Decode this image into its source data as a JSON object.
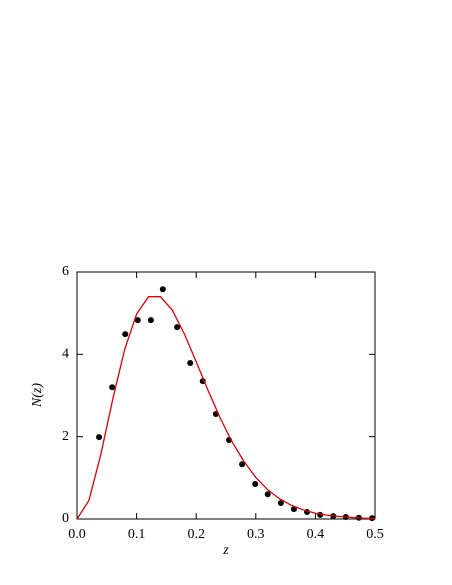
{
  "chart_data": {
    "type": "scatter",
    "xlabel": "z",
    "ylabel": "N(z)",
    "xlim": [
      0,
      0.5
    ],
    "ylim": [
      0,
      6
    ],
    "xticks": [
      {
        "value": 0,
        "label": "0.0"
      },
      {
        "value": 0.1,
        "label": "0.1"
      },
      {
        "value": 0.2,
        "label": "0.2"
      },
      {
        "value": 0.3,
        "label": "0.3"
      },
      {
        "value": 0.4,
        "label": "0.4"
      },
      {
        "value": 0.5,
        "label": "0.5"
      }
    ],
    "yticks": [
      0,
      2,
      4,
      6
    ],
    "series": [
      {
        "type": "scatter",
        "color": "#000000",
        "x": [
          0.037,
          0.059,
          0.081,
          0.102,
          0.124,
          0.144,
          0.168,
          0.19,
          0.211,
          0.233,
          0.255,
          0.277,
          0.299,
          0.32,
          0.342,
          0.364,
          0.386,
          0.408,
          0.43,
          0.451,
          0.473,
          0.495
        ],
        "values": [
          1.99,
          3.2,
          4.49,
          4.83,
          4.83,
          5.58,
          4.66,
          3.79,
          3.35,
          2.55,
          1.92,
          1.33,
          0.85,
          0.6,
          0.39,
          0.24,
          0.17,
          0.1,
          0.07,
          0.05,
          0.03,
          0.02
        ]
      },
      {
        "type": "line",
        "color": "#e00000",
        "x": [
          0,
          0.02,
          0.04,
          0.06,
          0.08,
          0.1,
          0.12,
          0.14,
          0.16,
          0.18,
          0.2,
          0.22,
          0.24,
          0.26,
          0.28,
          0.3,
          0.32,
          0.34,
          0.36,
          0.38,
          0.4,
          0.42,
          0.44,
          0.46,
          0.48,
          0.5
        ],
        "values": [
          0,
          0.45,
          1.57,
          2.91,
          4.12,
          4.98,
          5.4,
          5.4,
          5.07,
          4.5,
          3.82,
          3.12,
          2.46,
          1.88,
          1.4,
          1.01,
          0.71,
          0.49,
          0.33,
          0.22,
          0.14,
          0.09,
          0.06,
          0.04,
          0.02,
          0.01
        ]
      }
    ]
  }
}
